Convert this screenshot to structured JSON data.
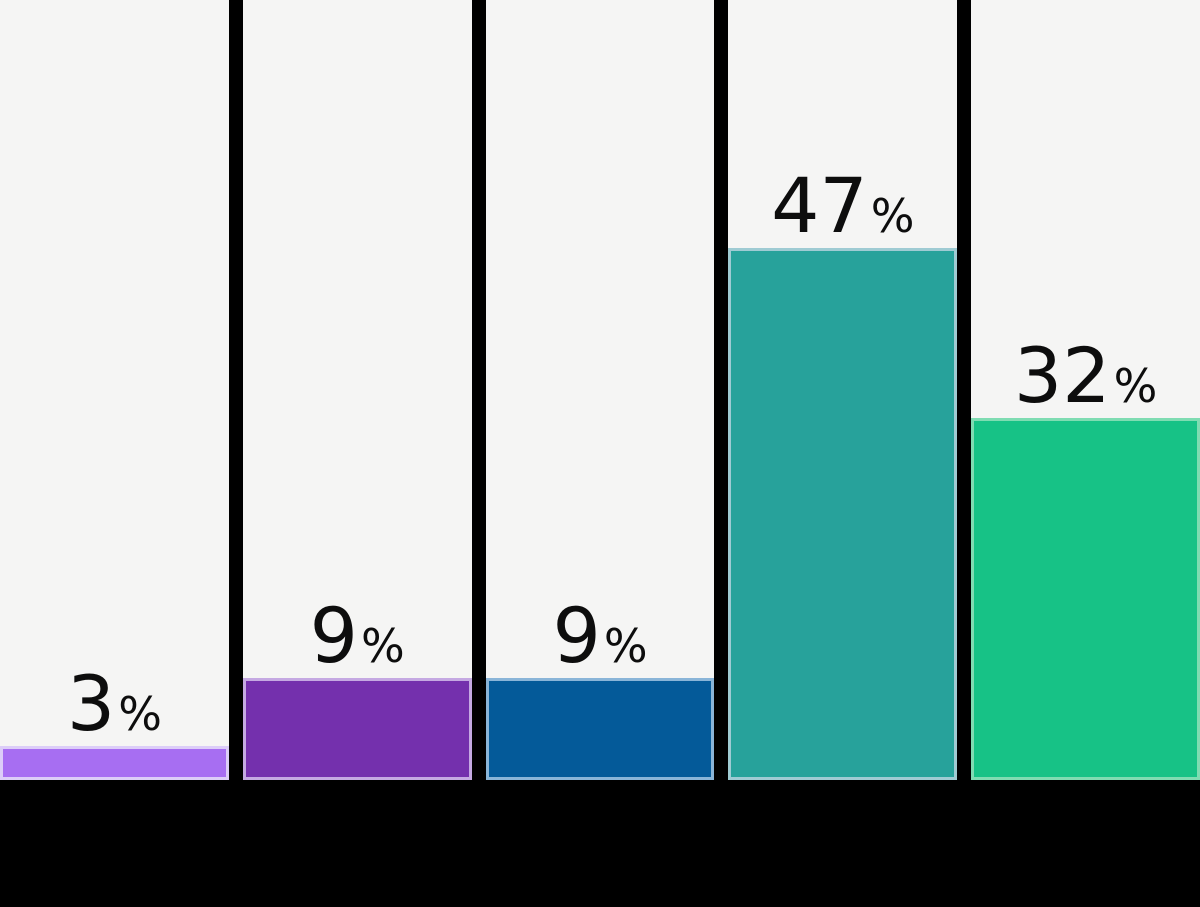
{
  "chart_data": {
    "type": "bar",
    "title": "",
    "xlabel": "",
    "ylabel": "",
    "values": [
      3,
      9,
      9,
      47,
      32
    ],
    "unit": "%",
    "ylim": [
      0,
      69
    ],
    "grid": false,
    "legend": "none",
    "colors": {
      "page_background": "#000000",
      "column_background": "#f5f5f4",
      "label_text": "#0d0d0d",
      "bar_fills": [
        "#a76ef2",
        "#7430ad",
        "#045a99",
        "#27a29b",
        "#17c286"
      ],
      "bar_borders": [
        "#dccdf8",
        "#c5a9e2",
        "#8ab5d8",
        "#9fcbd3",
        "#7fdcb2"
      ]
    }
  }
}
